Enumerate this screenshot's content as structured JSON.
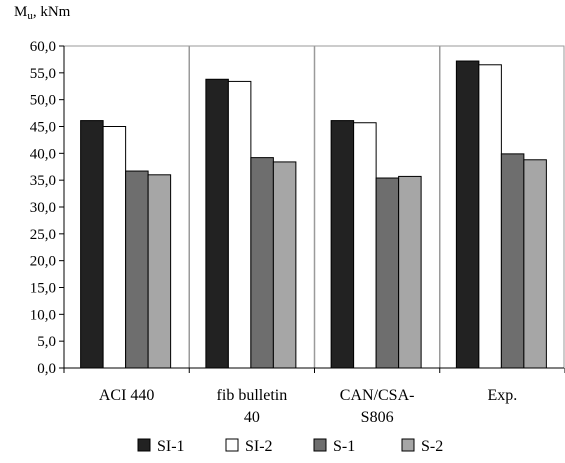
{
  "chart_data": {
    "type": "bar",
    "title": "",
    "ylabel_main": "M",
    "ylabel_sub": "u",
    "ylabel_unit": ", kNm",
    "xlabel": "",
    "ylim": [
      0,
      60
    ],
    "yticks": [
      "0,0",
      "5,0",
      "10,0",
      "15,0",
      "20,0",
      "25,0",
      "30,0",
      "35,0",
      "40,0",
      "45,0",
      "50,0",
      "55,0",
      "60,0"
    ],
    "categories": [
      [
        "ACI 440"
      ],
      [
        "fib bulletin",
        "40"
      ],
      [
        "CAN/CSA-",
        "S806"
      ],
      [
        "Exp."
      ]
    ],
    "series": [
      {
        "name": "SI-1",
        "color": "#222222",
        "values": [
          46.1,
          53.8,
          46.1,
          57.2
        ]
      },
      {
        "name": "SI-2",
        "color": "#ffffff",
        "values": [
          45.0,
          53.4,
          45.7,
          56.5
        ]
      },
      {
        "name": "S-1",
        "color": "#6e6e6e",
        "values": [
          36.7,
          39.2,
          35.4,
          39.9
        ]
      },
      {
        "name": "S-2",
        "color": "#a6a6a6",
        "values": [
          36.0,
          38.4,
          35.7,
          38.8
        ]
      }
    ],
    "grid": "vertical separators between categories",
    "legend": "bottom"
  }
}
